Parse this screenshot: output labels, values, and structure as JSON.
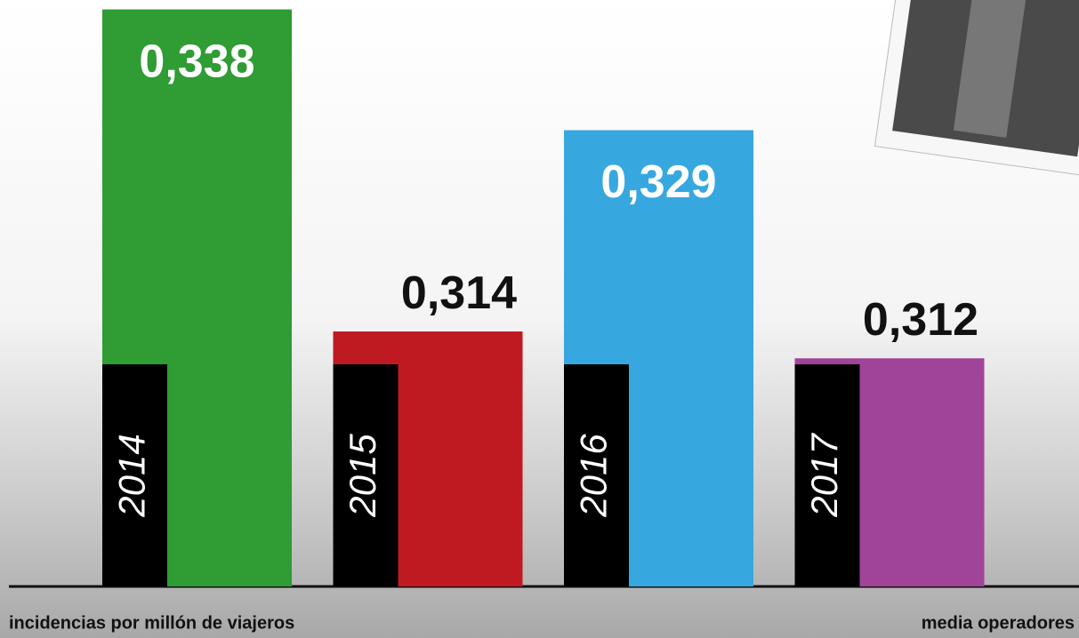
{
  "chart_data": {
    "type": "bar",
    "categories": [
      "2014",
      "2015",
      "2016",
      "2017"
    ],
    "values": [
      0.338,
      0.314,
      0.329,
      0.312
    ],
    "value_labels": [
      "0,338",
      "0,314",
      "0,329",
      "0,312"
    ],
    "colors": [
      "#2f9c34",
      "#bf1a22",
      "#37a7df",
      "#a0449a"
    ],
    "ylim": [
      0.295,
      0.3387
    ],
    "x_label": "incidencias por millón de viajeros",
    "note": "media operadores"
  }
}
